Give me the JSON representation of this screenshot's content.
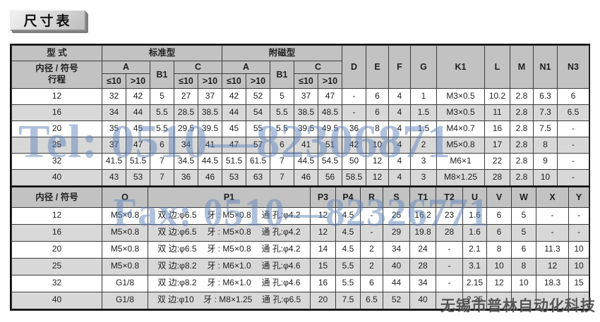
{
  "title": "尺寸表",
  "watermarks": {
    "tel": "Tel: 0510—82306871",
    "fax": "Fax: 0510—82326771",
    "company": "无锡市普林自动化科技"
  },
  "colors": {
    "header_bg": "#c2c2c2",
    "row_alt_bg": "#d8d8d8",
    "row_bg": "#ffffff",
    "grid_line": "#3c3c3c",
    "outer_border": "#0d0d0d",
    "watermark_blue": "rgba(96,131,186,0.50)",
    "watermark_gray": "rgba(62,62,62,0.85)"
  },
  "top_table": {
    "h1": {
      "type": "型 式",
      "standard": "标准型",
      "magnetic": "附磁型"
    },
    "h2": {
      "label_line1": "内径 / 符号",
      "label_line2": "行程",
      "a": "A",
      "b1": "B1",
      "c": "C",
      "le10": "≤10",
      "gt10": ">10"
    },
    "single_cols": [
      "D",
      "E",
      "F",
      "G",
      "K1",
      "L",
      "M",
      "N1",
      "N3"
    ],
    "rows": [
      {
        "bore": "12",
        "cells": [
          "32",
          "42",
          "5",
          "27",
          "37",
          "42",
          "52",
          "5",
          "37",
          "47",
          "-",
          "6",
          "4",
          "1",
          "M3×0.5",
          "10.2",
          "2.8",
          "6.3",
          "6"
        ]
      },
      {
        "bore": "16",
        "cells": [
          "34",
          "44",
          "5.5",
          "28.5",
          "38.5",
          "44",
          "54",
          "5.5",
          "38.5",
          "48.5",
          "-",
          "6",
          "4",
          "1.5",
          "M3×0.5",
          "11",
          "2.8",
          "7.3",
          "6.5"
        ]
      },
      {
        "bore": "20",
        "cells": [
          "35",
          "45",
          "5.5",
          "29.5",
          "39.5",
          "45",
          "55",
          "5.5",
          "39.5",
          "49.5",
          "36",
          "8",
          "4",
          "1.5",
          "M4×0.7",
          "16",
          "2.8",
          "7.5",
          "-"
        ]
      },
      {
        "bore": "25",
        "cells": [
          "37",
          "47",
          "6",
          "34",
          "41",
          "47",
          "57",
          "6",
          "41",
          "51",
          "42",
          "10",
          "4",
          "2",
          "M5×0.8",
          "17",
          "2.8",
          "8",
          "-"
        ]
      },
      {
        "bore": "32",
        "cells": [
          "41.5",
          "51.5",
          "7",
          "34.5",
          "44.5",
          "51.5",
          "61.5",
          "7",
          "44.5",
          "54.5",
          "50",
          "12",
          "4",
          "3",
          "M6×1",
          "22",
          "2.8",
          "9",
          "-"
        ]
      },
      {
        "bore": "40",
        "cells": [
          "43",
          "53",
          "7",
          "36",
          "46",
          "53",
          "63",
          "7",
          "46",
          "56",
          "58.5",
          "12",
          "4",
          "3",
          "M8×1.25",
          "28",
          "2.8",
          "10",
          "-"
        ]
      }
    ]
  },
  "bottom_table": {
    "header": [
      "内径 / 符号",
      "O",
      "P1",
      "P3",
      "P4",
      "R",
      "S",
      "T1",
      "T2",
      "U",
      "V",
      "W",
      "X",
      "Y"
    ],
    "rows": [
      {
        "bore": "12",
        "o": "M5×0.8",
        "p1": [
          "双 边:φ6.5",
          "牙 : M5×0.8",
          "通 孔:φ4.2"
        ],
        "cells": [
          "12",
          "4.5",
          "-",
          "25",
          "16.2",
          "23",
          "1.6",
          "6",
          "5",
          "-",
          "-"
        ]
      },
      {
        "bore": "16",
        "o": "M5×0.8",
        "p1": [
          "双 边:φ6.5",
          "牙 : M5×0.8",
          "通 孔:φ4.2"
        ],
        "cells": [
          "12",
          "4.5",
          "-",
          "29",
          "19.8",
          "28",
          "1.6",
          "6",
          "5",
          "-",
          "-"
        ]
      },
      {
        "bore": "20",
        "o": "M5×0.8",
        "p1": [
          "双 边:φ6.5",
          "牙 : M5×0.8",
          "通 孔:φ4.2"
        ],
        "cells": [
          "14",
          "4.5",
          "2",
          "34",
          "24",
          "-",
          "2.1",
          "8",
          "6",
          "11.3",
          "10"
        ]
      },
      {
        "bore": "25",
        "o": "M5×0.8",
        "p1": [
          "双 边:φ8.2",
          "牙 : M6×1.0",
          "通 孔:φ4.6"
        ],
        "cells": [
          "15",
          "5.5",
          "2",
          "40",
          "28",
          "-",
          "3.1",
          "10",
          "8",
          "12",
          "10"
        ]
      },
      {
        "bore": "32",
        "o": "G1/8",
        "p1": [
          "双 边:φ8.2",
          "牙 : M6×1.0",
          "通 孔:φ4.6"
        ],
        "cells": [
          "16",
          "5.5",
          "6",
          "44",
          "34",
          "-",
          "2.15",
          "12",
          "10",
          "18.3",
          "15"
        ]
      },
      {
        "bore": "40",
        "o": "G1/8",
        "p1": [
          "双 边:φ10",
          "牙 : M8×1.25",
          "通 孔:φ6.5"
        ],
        "cells": [
          "20",
          "7.5",
          "6.5",
          "52",
          "40",
          "-",
          "2.25",
          "",
          "",
          "",
          ""
        ]
      }
    ]
  }
}
